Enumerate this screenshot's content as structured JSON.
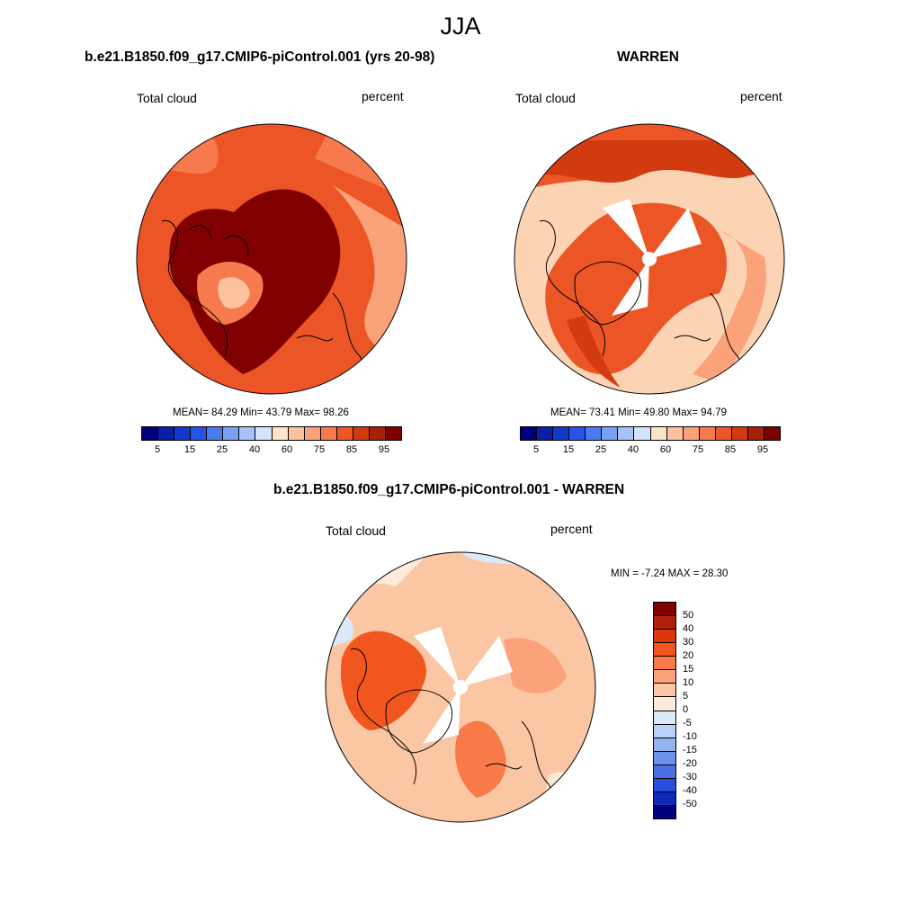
{
  "title": "JJA",
  "panels": [
    {
      "title": "b.e21.B1850.f09_g17.CMIP6-piControl.001 (yrs 20-98)",
      "left_label": "Total cloud",
      "right_label": "percent",
      "stats": "MEAN=  84.29  Min=  43.79  Max=  98.26",
      "base_color": "#e04a1e",
      "colorbar": {
        "colors": [
          "#00007f",
          "#0a1ea8",
          "#1339cc",
          "#2654e5",
          "#4b79ef",
          "#7aa0f3",
          "#a7c2f7",
          "#d3e4fb",
          "#fde3c8",
          "#fcc29e",
          "#fba27a",
          "#f77a4e",
          "#ec5526",
          "#d23a10",
          "#a8200a",
          "#800000"
        ],
        "ticks": [
          "5",
          "15",
          "25",
          "40",
          "60",
          "75",
          "85",
          "95"
        ]
      }
    },
    {
      "title": "WARREN",
      "left_label": "Total cloud",
      "right_label": "percent",
      "stats": "MEAN=  73.41  Min=  49.80  Max=  94.79",
      "base_color": "#fcd4b4",
      "colorbar": {
        "colors": [
          "#00007f",
          "#0a1ea8",
          "#1339cc",
          "#2654e5",
          "#4b79ef",
          "#7aa0f3",
          "#a7c2f7",
          "#d3e4fb",
          "#fde3c8",
          "#fcc29e",
          "#fba27a",
          "#f77a4e",
          "#ec5526",
          "#d23a10",
          "#a8200a",
          "#800000"
        ],
        "ticks": [
          "5",
          "15",
          "25",
          "40",
          "60",
          "75",
          "85",
          "95"
        ]
      }
    },
    {
      "title": "b.e21.B1850.f09_g17.CMIP6-piControl.001 - WARREN",
      "left_label": "Total cloud",
      "right_label": "percent",
      "stats": "MIN =  -7.24 MAX =  28.30",
      "base_color": "#fbc6a4",
      "colorbar": {
        "colors": [
          "#800000",
          "#b0200a",
          "#d9380e",
          "#f2561f",
          "#f87a48",
          "#fba27a",
          "#fdc7a6",
          "#feebd9",
          "#dbe9fa",
          "#b8d1f6",
          "#93b3f1",
          "#6f93ec",
          "#4a6fe6",
          "#284edb",
          "#1029b8",
          "#00007f"
        ],
        "ticks": [
          "50",
          "40",
          "30",
          "20",
          "15",
          "10",
          "5",
          "0",
          "-5",
          "-10",
          "-15",
          "-20",
          "-30",
          "-40",
          "-50"
        ]
      }
    }
  ]
}
